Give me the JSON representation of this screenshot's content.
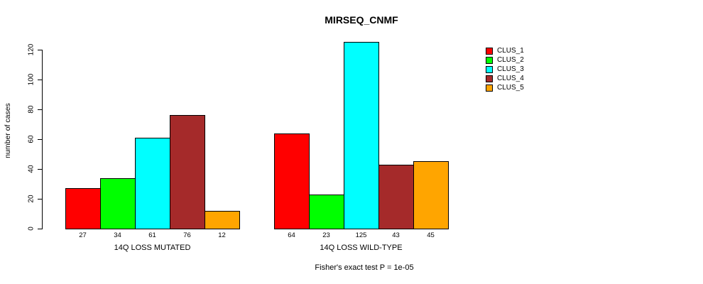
{
  "title": "MIRSEQ_CNMF",
  "chart_data": {
    "type": "bar",
    "title": "MIRSEQ_CNMF",
    "xlabel": "",
    "ylabel": "number of cases",
    "ylim": [
      0,
      120
    ],
    "yticks": [
      0,
      20,
      40,
      60,
      80,
      100,
      120
    ],
    "grid": false,
    "legend_position": "right",
    "series_names": [
      "CLUS_1",
      "CLUS_2",
      "CLUS_3",
      "CLUS_4",
      "CLUS_5"
    ],
    "colors": [
      "#FF0000",
      "#00FF00",
      "#00FFFF",
      "#A52A2A",
      "#FFA500"
    ],
    "groups": [
      {
        "label": "14Q LOSS MUTATED",
        "values": [
          27,
          34,
          61,
          76,
          12
        ]
      },
      {
        "label": "14Q LOSS WILD-TYPE",
        "values": [
          64,
          23,
          125,
          43,
          45
        ]
      }
    ],
    "bar_value_labels_shown": true,
    "annotation": "Fisher's exact test P = 1e-05"
  },
  "colors": {
    "axis": "#000000",
    "bar_border": "#000000",
    "background": "#FFFFFF",
    "text": "#000000"
  }
}
